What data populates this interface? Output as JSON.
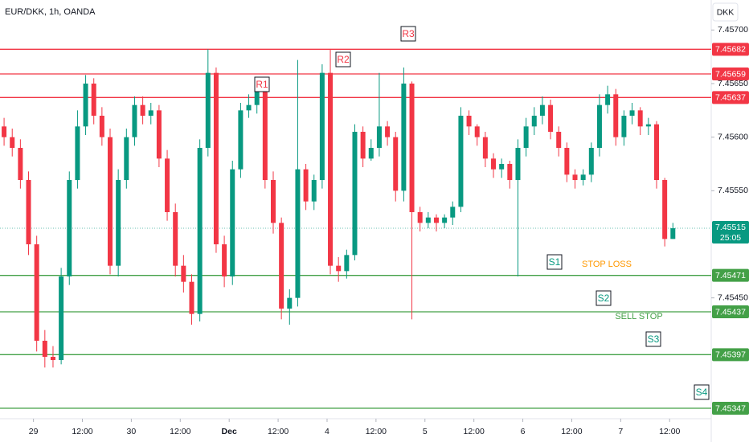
{
  "chart_data": {
    "type": "candlestick",
    "title": "EUR/DKK, 1h, OANDA",
    "currency_button": "DKK",
    "up_color": "#089981",
    "down_color": "#f23645",
    "ylim": [
      7.45338,
      7.45728
    ],
    "yticks": [
      {
        "value": 7.457,
        "label": "7.45700"
      },
      {
        "value": 7.4565,
        "label": "7.45650"
      },
      {
        "value": 7.456,
        "label": "7.45600"
      },
      {
        "value": 7.4555,
        "label": "7.45550"
      },
      {
        "value": 7.4545,
        "label": "7.45450"
      }
    ],
    "xlim": [
      -0.5,
      86.7
    ],
    "xticks": [
      {
        "value": 3.6,
        "label": "29"
      },
      {
        "value": 9.6,
        "label": "12:00"
      },
      {
        "value": 15.6,
        "label": "30"
      },
      {
        "value": 21.6,
        "label": "12:00"
      },
      {
        "value": 27.6,
        "label": "Dec",
        "bold": true
      },
      {
        "value": 33.6,
        "label": "12:00"
      },
      {
        "value": 39.6,
        "label": "4"
      },
      {
        "value": 45.6,
        "label": "12:00"
      },
      {
        "value": 51.6,
        "label": "5"
      },
      {
        "value": 57.6,
        "label": "12:00"
      },
      {
        "value": 63.6,
        "label": "6"
      },
      {
        "value": 69.6,
        "label": "12:00"
      },
      {
        "value": 75.6,
        "label": "7"
      },
      {
        "value": 81.6,
        "label": "12:00"
      }
    ],
    "open": [
      7.4561,
      7.456,
      7.4559,
      7.4556,
      7.455,
      7.4541,
      7.45395,
      7.45392,
      7.4547,
      7.4556,
      7.4561,
      7.4565,
      7.4562,
      7.456,
      7.4548,
      7.4556,
      7.456,
      7.4563,
      7.4562,
      7.45625,
      7.4558,
      7.4553,
      7.4548,
      7.45465,
      7.45435,
      7.4559,
      7.4566,
      7.455,
      7.4547,
      7.4557,
      7.45625,
      7.4563,
      7.4565,
      7.4556,
      7.4552,
      7.4544,
      7.4545,
      7.4557,
      7.4554,
      7.4556,
      7.4566,
      7.4548,
      7.45475,
      7.4549,
      7.45605,
      7.4558,
      7.4559,
      7.4561,
      7.456,
      7.4555,
      7.4565,
      7.4553,
      7.4552,
      7.45525,
      7.4552,
      7.45525,
      7.45535,
      7.4562,
      7.4561,
      7.456,
      7.4558,
      7.4557,
      7.45575,
      7.4556,
      7.4559,
      7.4561,
      7.4562,
      7.4563,
      7.45605,
      7.4559,
      7.45565,
      7.4556,
      7.45565,
      7.4559,
      7.4563,
      7.4564,
      7.456,
      7.4562,
      7.45625,
      7.4561,
      7.45612,
      7.4556,
      7.45505
    ],
    "high": [
      7.45618,
      7.45608,
      7.45598,
      7.45568,
      7.45508,
      7.4542,
      7.45405,
      7.45478,
      7.45568,
      7.45625,
      7.45658,
      7.45655,
      7.45628,
      7.45608,
      7.4557,
      7.45608,
      7.45638,
      7.45638,
      7.45632,
      7.4563,
      7.45588,
      7.45538,
      7.4549,
      7.45472,
      7.45598,
      7.45682,
      7.45665,
      7.45508,
      7.45578,
      7.45632,
      7.4564,
      7.45655,
      7.45652,
      7.45568,
      7.45525,
      7.45458,
      7.45672,
      7.45575,
      7.45565,
      7.45668,
      7.45682,
      7.45488,
      7.45495,
      7.45612,
      7.4561,
      7.45598,
      7.4566,
      7.45615,
      7.45605,
      7.45665,
      7.45652,
      7.45535,
      7.4553,
      7.45528,
      7.45528,
      7.4554,
      7.45628,
      7.45625,
      7.45612,
      7.45605,
      7.45585,
      7.4558,
      7.45578,
      7.45598,
      7.45618,
      7.45628,
      7.45638,
      7.45635,
      7.4561,
      7.45595,
      7.4557,
      7.4557,
      7.45595,
      7.4564,
      7.45648,
      7.45645,
      7.45625,
      7.45632,
      7.45628,
      7.45618,
      7.45615,
      7.45562,
      7.4552
    ],
    "low": [
      7.45592,
      7.45582,
      7.45552,
      7.4549,
      7.454,
      7.45385,
      7.45385,
      7.45388,
      7.45462,
      7.45552,
      7.45602,
      7.45612,
      7.45592,
      7.45472,
      7.4547,
      7.45552,
      7.45592,
      7.45612,
      7.45612,
      7.45572,
      7.45522,
      7.4547,
      7.45455,
      7.45425,
      7.45428,
      7.45582,
      7.45492,
      7.4546,
      7.45462,
      7.45562,
      7.45618,
      7.45622,
      7.45552,
      7.4551,
      7.4543,
      7.45425,
      7.45442,
      7.45532,
      7.45532,
      7.45552,
      7.45472,
      7.45465,
      7.45468,
      7.45485,
      7.45572,
      7.45578,
      7.45582,
      7.45592,
      7.4554,
      7.4554,
      7.4543,
      7.45512,
      7.45515,
      7.45512,
      7.45515,
      7.45518,
      7.4553,
      7.45602,
      7.45592,
      7.45572,
      7.45562,
      7.45562,
      7.45552,
      7.4547,
      7.45582,
      7.45602,
      7.45612,
      7.45598,
      7.45582,
      7.45558,
      7.45552,
      7.45555,
      7.45558,
      7.45582,
      7.45622,
      7.45592,
      7.45592,
      7.45612,
      7.45602,
      7.45602,
      7.45552,
      7.45498,
      7.45505
    ],
    "close": [
      7.456,
      7.4559,
      7.4556,
      7.455,
      7.4541,
      7.45395,
      7.45392,
      7.4547,
      7.4556,
      7.4561,
      7.4565,
      7.4562,
      7.456,
      7.4548,
      7.4556,
      7.456,
      7.4563,
      7.4562,
      7.45625,
      7.4558,
      7.4553,
      7.4548,
      7.45465,
      7.45435,
      7.4559,
      7.4566,
      7.455,
      7.4547,
      7.4557,
      7.45625,
      7.4563,
      7.4565,
      7.4556,
      7.4552,
      7.4544,
      7.4545,
      7.4557,
      7.4554,
      7.4556,
      7.4566,
      7.4548,
      7.45475,
      7.4549,
      7.45605,
      7.4558,
      7.4559,
      7.4561,
      7.456,
      7.4555,
      7.4565,
      7.4553,
      7.4552,
      7.45525,
      7.4552,
      7.45525,
      7.45535,
      7.4562,
      7.4561,
      7.456,
      7.4558,
      7.4557,
      7.45575,
      7.4556,
      7.4559,
      7.4561,
      7.4562,
      7.4563,
      7.45605,
      7.4559,
      7.45565,
      7.4556,
      7.45565,
      7.4559,
      7.4563,
      7.4564,
      7.456,
      7.4562,
      7.45625,
      7.4561,
      7.45612,
      7.4556,
      7.45505,
      7.45515
    ],
    "current_price": 7.45515,
    "countdown": "25:05",
    "levels": [
      {
        "value": 7.45682,
        "color": "#f23645"
      },
      {
        "value": 7.45659,
        "color": "#f23645"
      },
      {
        "value": 7.45637,
        "color": "#f23645"
      },
      {
        "value": 7.45471,
        "color": "#43a047"
      },
      {
        "value": 7.45437,
        "color": "#43a047"
      },
      {
        "value": 7.45397,
        "color": "#43a047"
      },
      {
        "value": 7.45347,
        "color": "#43a047"
      }
    ],
    "annotations": [
      {
        "label": "R3",
        "color": "#f23645",
        "boxed": true
      },
      {
        "label": "R2",
        "color": "#f23645",
        "boxed": true
      },
      {
        "label": "R1",
        "color": "#f23645",
        "boxed": true
      },
      {
        "label": "S1",
        "color": "#089981",
        "boxed": true
      },
      {
        "label": "S2",
        "color": "#089981",
        "boxed": true
      },
      {
        "label": "S3",
        "color": "#089981",
        "boxed": true
      },
      {
        "label": "S4",
        "color": "#089981",
        "boxed": true
      },
      {
        "label": "STOP LOSS",
        "color": "#ff9800",
        "boxed": false
      },
      {
        "label": "SELL STOP",
        "color": "#43a047",
        "boxed": false
      }
    ]
  }
}
